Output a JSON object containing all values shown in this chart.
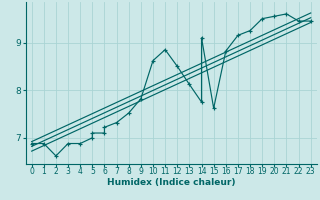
{
  "xlabel": "Humidex (Indice chaleur)",
  "bg_color": "#cce8e8",
  "line_color": "#006666",
  "grid_color": "#aad4d4",
  "xlim": [
    -0.5,
    23.5
  ],
  "ylim": [
    6.45,
    9.85
  ],
  "yticks": [
    7,
    8,
    9
  ],
  "xticks": [
    0,
    1,
    2,
    3,
    4,
    5,
    6,
    7,
    8,
    9,
    10,
    11,
    12,
    13,
    14,
    15,
    16,
    17,
    18,
    19,
    20,
    21,
    22,
    23
  ],
  "scatter_x": [
    0,
    1,
    2,
    3,
    4,
    5,
    5,
    6,
    6,
    7,
    8,
    9,
    10,
    11,
    12,
    13,
    14,
    14,
    15,
    16,
    17,
    18,
    19,
    20,
    21,
    22,
    23
  ],
  "scatter_y": [
    6.88,
    6.88,
    6.62,
    6.88,
    6.88,
    7.0,
    7.1,
    7.1,
    7.22,
    7.32,
    7.52,
    7.82,
    8.62,
    8.85,
    8.5,
    8.12,
    7.75,
    9.1,
    7.62,
    8.82,
    9.15,
    9.25,
    9.5,
    9.55,
    9.6,
    9.45,
    9.45
  ],
  "trend_lines": [
    {
      "x0": 0,
      "x1": 23,
      "y0": 6.72,
      "y1": 9.42
    },
    {
      "x0": 0,
      "x1": 23,
      "y0": 6.82,
      "y1": 9.52
    },
    {
      "x0": 0,
      "x1": 23,
      "y0": 6.92,
      "y1": 9.62
    }
  ]
}
